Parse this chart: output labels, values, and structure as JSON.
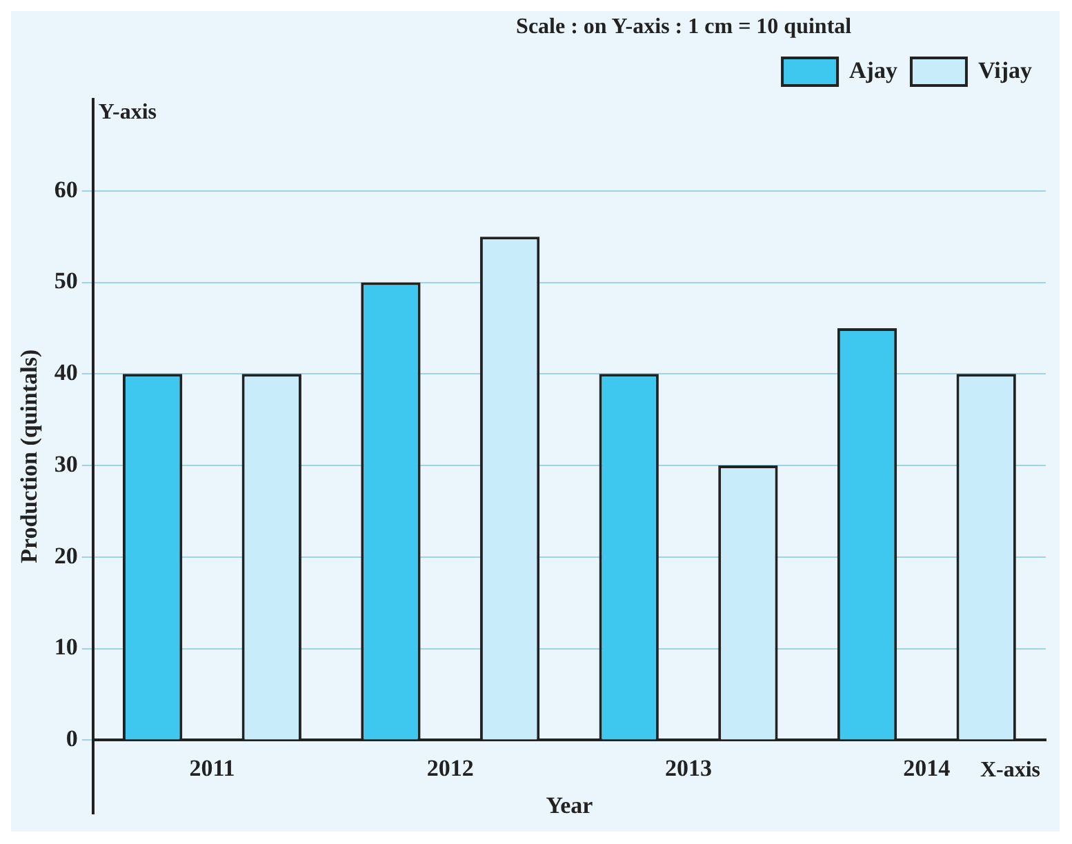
{
  "chart_data": {
    "type": "bar",
    "ylabel": "Production (quintals)",
    "xlabel": "Year",
    "categories": [
      "2011",
      "2012",
      "2013",
      "2014"
    ],
    "series": [
      {
        "name": "Ajay",
        "color": "#3ec8f0",
        "values": [
          40,
          50,
          40,
          45
        ]
      },
      {
        "name": "Vijay",
        "color": "#c8ecf9",
        "values": [
          40,
          55,
          30,
          40
        ]
      }
    ],
    "ylim": [
      -8,
      70
    ],
    "yticks": [
      0,
      10,
      20,
      30,
      40,
      50,
      60
    ],
    "grid": "y",
    "legend": "top right",
    "annotations": [
      "Scale : on Y-axis : 1 cm = 10 quintal",
      "Y-axis",
      "X-axis"
    ]
  }
}
